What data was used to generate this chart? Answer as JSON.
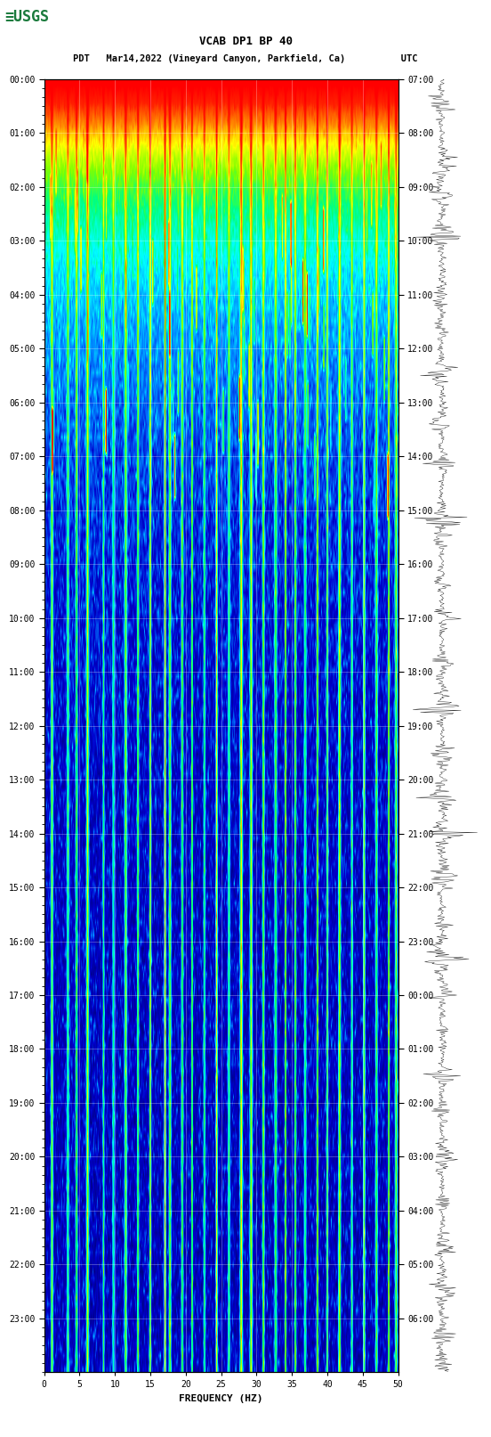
{
  "title_line1": "VCAB DP1 BP 40",
  "title_line2": "PDT   Mar14,2022 (Vineyard Canyon, Parkfield, Ca)          UTC",
  "xlabel": "FREQUENCY (HZ)",
  "freq_min": 0,
  "freq_max": 50,
  "freq_ticks": [
    0,
    5,
    10,
    15,
    20,
    25,
    30,
    35,
    40,
    45,
    50
  ],
  "time_hours_pdt": [
    "00:00",
    "01:00",
    "02:00",
    "03:00",
    "04:00",
    "05:00",
    "06:00",
    "07:00",
    "08:00",
    "09:00",
    "10:00",
    "11:00",
    "12:00",
    "13:00",
    "14:00",
    "15:00",
    "16:00",
    "17:00",
    "18:00",
    "19:00",
    "20:00",
    "21:00",
    "22:00",
    "23:00"
  ],
  "time_hours_utc": [
    "07:00",
    "08:00",
    "09:00",
    "10:00",
    "11:00",
    "12:00",
    "13:00",
    "14:00",
    "15:00",
    "16:00",
    "17:00",
    "18:00",
    "19:00",
    "20:00",
    "21:00",
    "22:00",
    "23:00",
    "00:00",
    "01:00",
    "02:00",
    "03:00",
    "04:00",
    "05:00",
    "06:00"
  ],
  "background_color": "#ffffff",
  "spectrogram_bg": "#00008B",
  "colormap_colors": [
    "#000080",
    "#0000ff",
    "#00ffff",
    "#00ff00",
    "#ffff00",
    "#ff8000",
    "#ff0000"
  ],
  "waveform_color": "#000000",
  "grid_color": "#ffffff",
  "grid_alpha": 0.4,
  "text_color": "#000000",
  "usgs_green": "#1a7a3c",
  "font_size_title": 9,
  "font_size_labels": 8,
  "font_size_ticks": 7,
  "n_time_steps": 1440,
  "n_freq_bins": 200,
  "noise_seed": 42
}
